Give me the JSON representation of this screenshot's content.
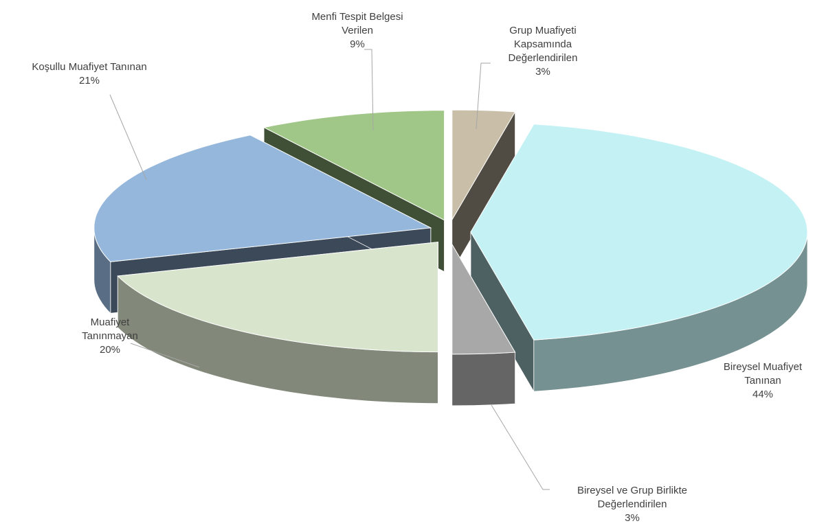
{
  "chart_data": {
    "type": "pie3d",
    "categories": [
      "Grup Muafiyeti Kapsamında Değerlendirilen",
      "Bireysel Muafiyet Tanınan",
      "Bireysel ve Grup Birlikte Değerlendirilen",
      "Muafiyet Tanınmayan",
      "Koşullu Muafiyet Tanınan",
      "Menfi Tespit Belgesi Verilen"
    ],
    "values": [
      3,
      44,
      3,
      20,
      21,
      9
    ],
    "value_labels": [
      "3%",
      "44%",
      "3%",
      "20%",
      "21%",
      "9%"
    ],
    "colors": [
      "#c9bfa8",
      "#c4f2f4",
      "#a8a8a8",
      "#d8e4cc",
      "#95b7dc",
      "#a0c787"
    ]
  }
}
